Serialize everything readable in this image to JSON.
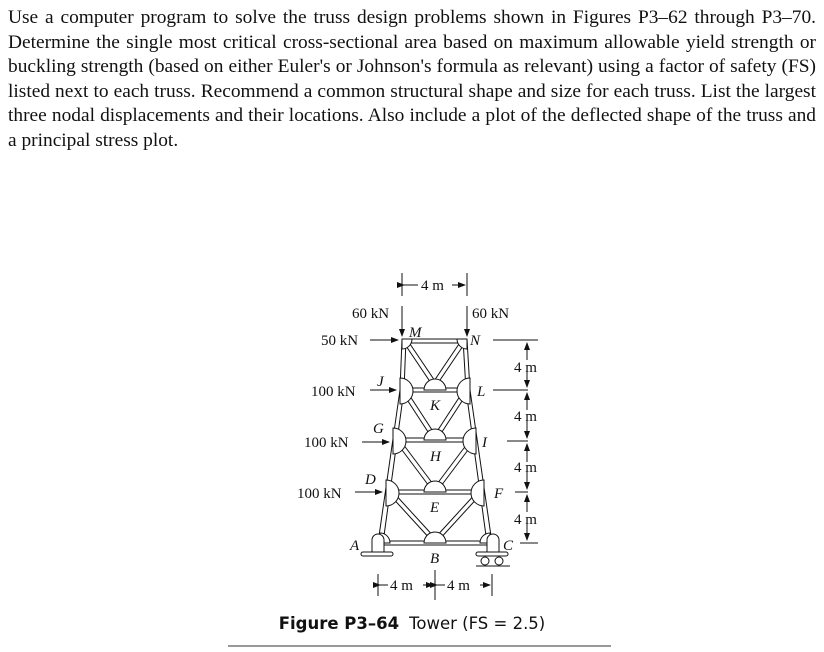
{
  "problem_text": "Use a computer program to solve the truss design problems shown in Figures P3–62 through P3–70. Determine the single most critical cross-sectional area based on maximum allowable yield strength or buckling strength (based on either Euler's or Johnson's formula as relevant) using a factor of safety (FS) listed next to each truss. Recommend a common structural shape and size for each truss. List the largest three nodal displacements and their locations. Also include a plot of the deflected shape of the truss and a principal stress plot.",
  "figure": {
    "number": "Figure P3–64",
    "caption": "Tower (FS = 2.5)",
    "nodes": {
      "A": "A",
      "B": "B",
      "C": "C",
      "D": "D",
      "E": "E",
      "F": "F",
      "G": "G",
      "H": "H",
      "I": "I",
      "J": "J",
      "K": "K",
      "L": "L",
      "M": "M",
      "N": "N"
    },
    "loads": {
      "M_down": "60 kN",
      "N_down": "60 kN",
      "M_horizontal": "50 kN",
      "J_horizontal": "100 kN",
      "G_horizontal": "100 kN",
      "D_horizontal": "100 kN"
    },
    "dimensions": {
      "top_width": "4 m",
      "panel_1": "4 m",
      "panel_2": "4 m",
      "panel_3": "4 m",
      "panel_4": "4 m",
      "base_left": "4 m",
      "base_right": "4 m"
    }
  }
}
